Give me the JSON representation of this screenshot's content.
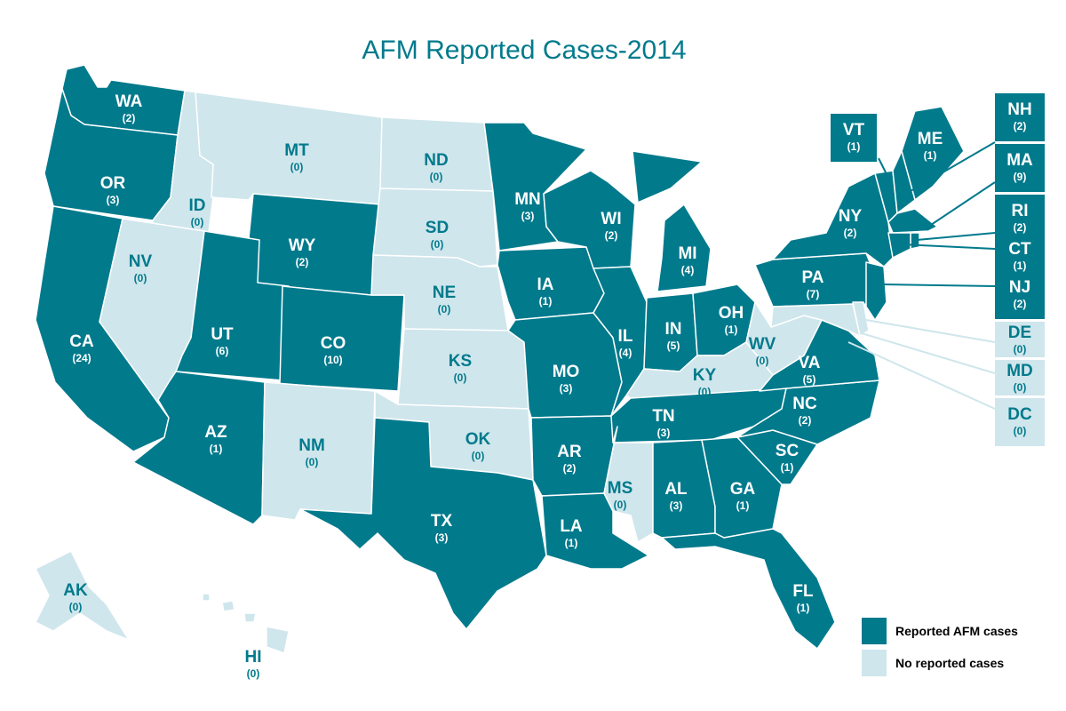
{
  "title": "AFM Reported Cases-2014",
  "colors": {
    "reported": "#017a8c",
    "none": "#cfe6ec",
    "border": "#ffffff"
  },
  "legend": [
    {
      "label": "Reported AFM cases",
      "status": "reported"
    },
    {
      "label": "No reported cases",
      "status": "none"
    }
  ],
  "states": [
    {
      "code": "WA",
      "count": "(2)",
      "status": "reported"
    },
    {
      "code": "OR",
      "count": "(3)",
      "status": "reported"
    },
    {
      "code": "CA",
      "count": "(24)",
      "status": "reported"
    },
    {
      "code": "ID",
      "count": "(0)",
      "status": "none"
    },
    {
      "code": "NV",
      "count": "(0)",
      "status": "none"
    },
    {
      "code": "MT",
      "count": "(0)",
      "status": "none"
    },
    {
      "code": "WY",
      "count": "(2)",
      "status": "reported"
    },
    {
      "code": "UT",
      "count": "(6)",
      "status": "reported"
    },
    {
      "code": "AZ",
      "count": "(1)",
      "status": "reported"
    },
    {
      "code": "CO",
      "count": "(10)",
      "status": "reported"
    },
    {
      "code": "NM",
      "count": "(0)",
      "status": "none"
    },
    {
      "code": "ND",
      "count": "(0)",
      "status": "none"
    },
    {
      "code": "SD",
      "count": "(0)",
      "status": "none"
    },
    {
      "code": "NE",
      "count": "(0)",
      "status": "none"
    },
    {
      "code": "KS",
      "count": "(0)",
      "status": "none"
    },
    {
      "code": "OK",
      "count": "(0)",
      "status": "none"
    },
    {
      "code": "TX",
      "count": "(3)",
      "status": "reported"
    },
    {
      "code": "MN",
      "count": "(3)",
      "status": "reported"
    },
    {
      "code": "IA",
      "count": "(1)",
      "status": "reported"
    },
    {
      "code": "MO",
      "count": "(3)",
      "status": "reported"
    },
    {
      "code": "AR",
      "count": "(2)",
      "status": "reported"
    },
    {
      "code": "LA",
      "count": "(1)",
      "status": "reported"
    },
    {
      "code": "WI",
      "count": "(2)",
      "status": "reported"
    },
    {
      "code": "IL",
      "count": "(4)",
      "status": "reported"
    },
    {
      "code": "MI",
      "count": "(4)",
      "status": "reported"
    },
    {
      "code": "IN",
      "count": "(5)",
      "status": "reported"
    },
    {
      "code": "OH",
      "count": "(1)",
      "status": "reported"
    },
    {
      "code": "KY",
      "count": "(0)",
      "status": "none"
    },
    {
      "code": "TN",
      "count": "(3)",
      "status": "reported"
    },
    {
      "code": "MS",
      "count": "(0)",
      "status": "none"
    },
    {
      "code": "AL",
      "count": "(3)",
      "status": "reported"
    },
    {
      "code": "GA",
      "count": "(1)",
      "status": "reported"
    },
    {
      "code": "FL",
      "count": "(1)",
      "status": "reported"
    },
    {
      "code": "SC",
      "count": "(1)",
      "status": "reported"
    },
    {
      "code": "NC",
      "count": "(2)",
      "status": "reported"
    },
    {
      "code": "VA",
      "count": "(5)",
      "status": "reported"
    },
    {
      "code": "WV",
      "count": "(0)",
      "status": "none"
    },
    {
      "code": "PA",
      "count": "(7)",
      "status": "reported"
    },
    {
      "code": "NY",
      "count": "(2)",
      "status": "reported"
    },
    {
      "code": "VT",
      "count": "(1)",
      "status": "reported"
    },
    {
      "code": "ME",
      "count": "(1)",
      "status": "reported"
    },
    {
      "code": "NH",
      "count": "(2)",
      "status": "reported"
    },
    {
      "code": "MA",
      "count": "(9)",
      "status": "reported"
    },
    {
      "code": "RI",
      "count": "(2)",
      "status": "reported"
    },
    {
      "code": "CT",
      "count": "(1)",
      "status": "reported"
    },
    {
      "code": "NJ",
      "count": "(2)",
      "status": "reported"
    },
    {
      "code": "DE",
      "count": "(0)",
      "status": "none"
    },
    {
      "code": "MD",
      "count": "(0)",
      "status": "none"
    },
    {
      "code": "DC",
      "count": "(0)",
      "status": "none"
    },
    {
      "code": "AK",
      "count": "(0)",
      "status": "none"
    },
    {
      "code": "HI",
      "count": "(0)",
      "status": "none"
    }
  ]
}
